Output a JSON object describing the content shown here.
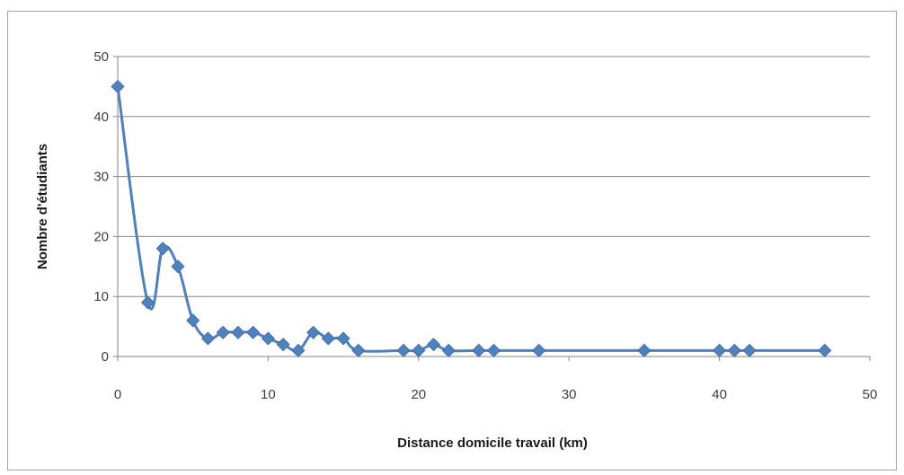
{
  "chart_data": {
    "type": "line",
    "title": "",
    "xlabel": "Distance domicile travail (km)",
    "ylabel": "Nombre d'étudiants",
    "xlim": [
      0,
      50
    ],
    "ylim": [
      0,
      50
    ],
    "xticks": [
      0,
      10,
      20,
      30,
      40,
      50
    ],
    "yticks": [
      0,
      10,
      20,
      30,
      40,
      50
    ],
    "grid": "horizontal",
    "legend": "none",
    "smooth": true,
    "series": [
      {
        "x": [
          0,
          2,
          3,
          4,
          5,
          6,
          7,
          8,
          9,
          10,
          11,
          12,
          13,
          14,
          15,
          16,
          19,
          20,
          21,
          22,
          24,
          25,
          28,
          35,
          40,
          41,
          42,
          47
        ],
        "y": [
          45,
          9,
          18,
          15,
          6,
          3,
          4,
          4,
          4,
          3,
          2,
          1,
          4,
          3,
          3,
          1,
          1,
          1,
          2,
          1,
          1,
          1,
          1,
          1,
          1,
          1,
          1,
          1
        ],
        "color": "#4f81bd",
        "marker": "diamond"
      }
    ]
  },
  "colors": {
    "line": "#4f81bd",
    "marker": "#4f81bd",
    "gridline": "#868686",
    "axis": "#868686"
  }
}
